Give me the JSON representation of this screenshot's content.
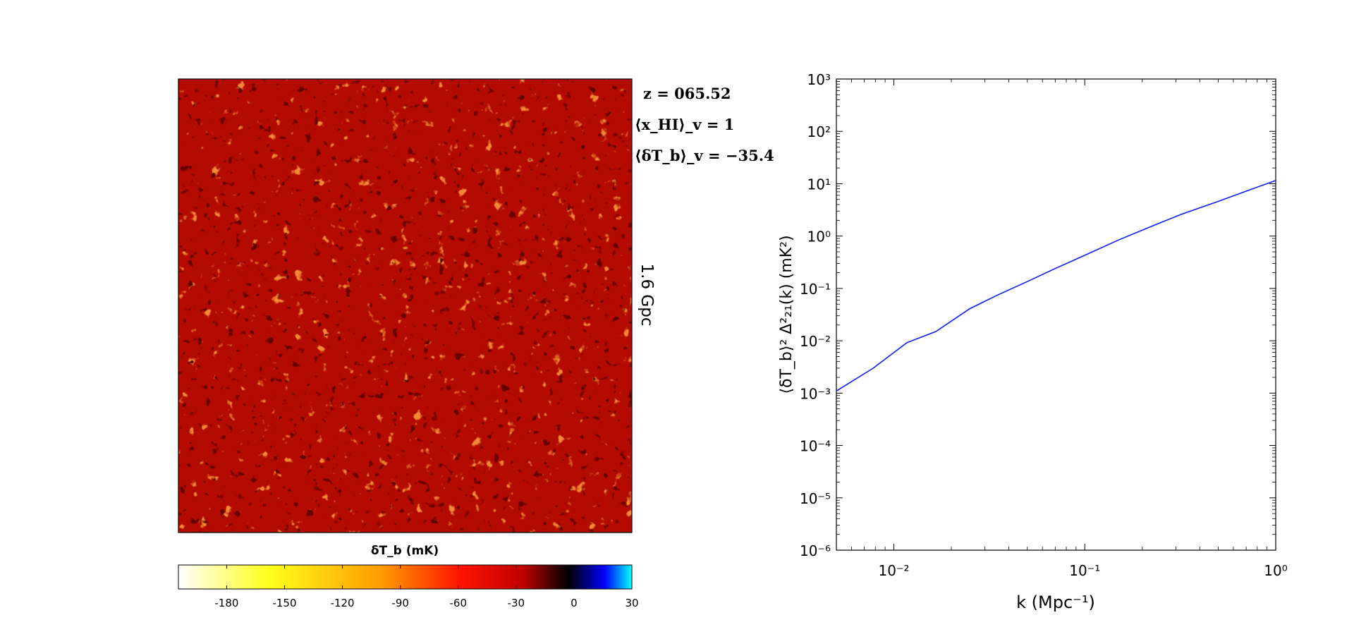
{
  "annotations": {
    "redshift": "z = 065.52",
    "xhi": "⟨x_HI⟩_v = 1",
    "dtb": "⟨δT_b⟩_v = −35.4",
    "box_size": "1.6 Gpc"
  },
  "colorbar": {
    "title": "δT_b (mK)",
    "ticks": [
      "-180",
      "-150",
      "-120",
      "-90",
      "-60",
      "-30",
      "0",
      "30"
    ],
    "tick_values": [
      -180,
      -150,
      -120,
      -90,
      -60,
      -30,
      0,
      30
    ],
    "range": [
      -205,
      30
    ]
  },
  "colors": {
    "map_base": "#b30b00",
    "power_line": "#0a1cff",
    "axes": "#000000"
  },
  "chart_data": [
    {
      "type": "heatmap",
      "title": "",
      "xlabel": "",
      "ylabel": "1.6 Gpc",
      "value_label": "δT_b (mK)",
      "value_range": [
        -205,
        30
      ],
      "mean_value": -35.4,
      "colormap": [
        "#ffffff",
        "#ffff1a",
        "#ff9a00",
        "#ff1400",
        "#c00000",
        "#000000",
        "#0000ff",
        "#00ffff"
      ]
    },
    {
      "type": "line",
      "title": "",
      "xlabel": "k (Mpc⁻¹)",
      "ylabel": "⟨δT_b⟩² Δ²₂₁(k) (mK²)",
      "xscale": "log",
      "yscale": "log",
      "xlim": [
        0.005,
        1
      ],
      "ylim": [
        1e-06,
        1000
      ],
      "x_ticks": [
        "10⁻²",
        "10⁻¹",
        "10⁰"
      ],
      "y_ticks": [
        "10⁻⁶",
        "10⁻⁵",
        "10⁻⁴",
        "10⁻³",
        "10⁻²",
        "10⁻¹",
        "10⁰",
        "10¹",
        "10²",
        "10³"
      ],
      "grid": false,
      "series": [
        {
          "x": [
            0.005,
            0.0078,
            0.0117,
            0.0166,
            0.025,
            0.035,
            0.05,
            0.07,
            0.1,
            0.15,
            0.22,
            0.32,
            0.5,
            0.7,
            1.0
          ],
          "y": [
            0.0011,
            0.003,
            0.0092,
            0.015,
            0.041,
            0.075,
            0.135,
            0.24,
            0.43,
            0.84,
            1.5,
            2.6,
            4.6,
            7.2,
            11.5
          ]
        }
      ]
    }
  ]
}
